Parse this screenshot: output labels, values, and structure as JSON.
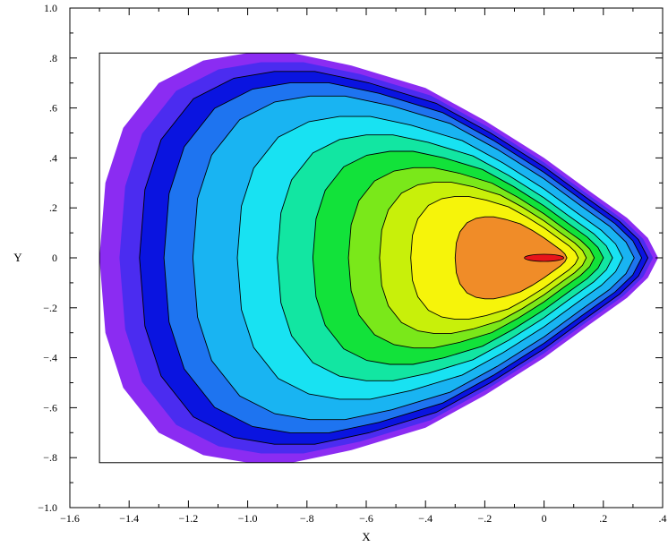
{
  "chart_data": {
    "type": "contour",
    "title": "",
    "xlabel": "X",
    "ylabel": "Y",
    "xlim": [
      -1.6,
      0.4
    ],
    "ylim": [
      -1.0,
      1.0
    ],
    "xticks": [
      -1.6,
      -1.4,
      -1.2,
      -1.0,
      -0.8,
      -0.6,
      -0.4,
      -0.2,
      0,
      0.2,
      0.4
    ],
    "xtick_labels": [
      "−1.6",
      "−1.4",
      "−1.2",
      "−1.0",
      "−.8",
      "−.6",
      "−.4",
      "−.2",
      "0",
      ".2",
      ".4"
    ],
    "yticks": [
      -1.0,
      -0.8,
      -0.6,
      -0.4,
      -0.2,
      0,
      0.2,
      0.4,
      0.6,
      0.8,
      1.0
    ],
    "ytick_labels": [
      "−1.0",
      "−.8",
      "−.6",
      "−.4",
      "−.2",
      "0",
      ".2",
      ".4",
      ".6",
      ".8",
      "1.0"
    ],
    "domain_box": {
      "x": [
        -1.5,
        0.4
      ],
      "y": [
        -0.82,
        0.82
      ]
    },
    "outer_boundary": {
      "upper": [
        [
          -1.5,
          0.0
        ],
        [
          -1.48,
          0.3
        ],
        [
          -1.42,
          0.52
        ],
        [
          -1.3,
          0.7
        ],
        [
          -1.15,
          0.79
        ],
        [
          -1.0,
          0.82
        ],
        [
          -0.85,
          0.82
        ],
        [
          -0.65,
          0.77
        ],
        [
          -0.4,
          0.68
        ],
        [
          -0.2,
          0.55
        ],
        [
          0.0,
          0.4
        ],
        [
          0.15,
          0.27
        ],
        [
          0.28,
          0.16
        ],
        [
          0.35,
          0.08
        ],
        [
          0.385,
          0.0
        ]
      ]
    },
    "levels": [
      {
        "name": "L1",
        "color": "#8b2cf2",
        "scale": 1.0
      },
      {
        "name": "L2",
        "color": "#4b2cf0",
        "scale": 0.955
      },
      {
        "name": "L3",
        "color": "#0a14e0",
        "scale": 0.91
      },
      {
        "name": "L4",
        "color": "#1e74f0",
        "scale": 0.855
      },
      {
        "name": "L5",
        "color": "#19b4f2",
        "scale": 0.79
      },
      {
        "name": "L6",
        "color": "#18e2f2",
        "scale": 0.69
      },
      {
        "name": "L7",
        "color": "#12e6a2",
        "scale": 0.6
      },
      {
        "name": "L8",
        "color": "#12e23a",
        "scale": 0.52
      },
      {
        "name": "L9",
        "color": "#7ae81a",
        "scale": 0.44
      },
      {
        "name": "L10",
        "color": "#c8f00a",
        "scale": 0.37
      },
      {
        "name": "L11",
        "color": "#f6f40a",
        "scale": 0.3
      },
      {
        "name": "L12",
        "color": "#f08c28",
        "scale": 0.2
      }
    ],
    "peak": {
      "x": 0.0,
      "y": 0.0,
      "color": "#e8141a"
    },
    "grid": false,
    "legend": "none"
  }
}
